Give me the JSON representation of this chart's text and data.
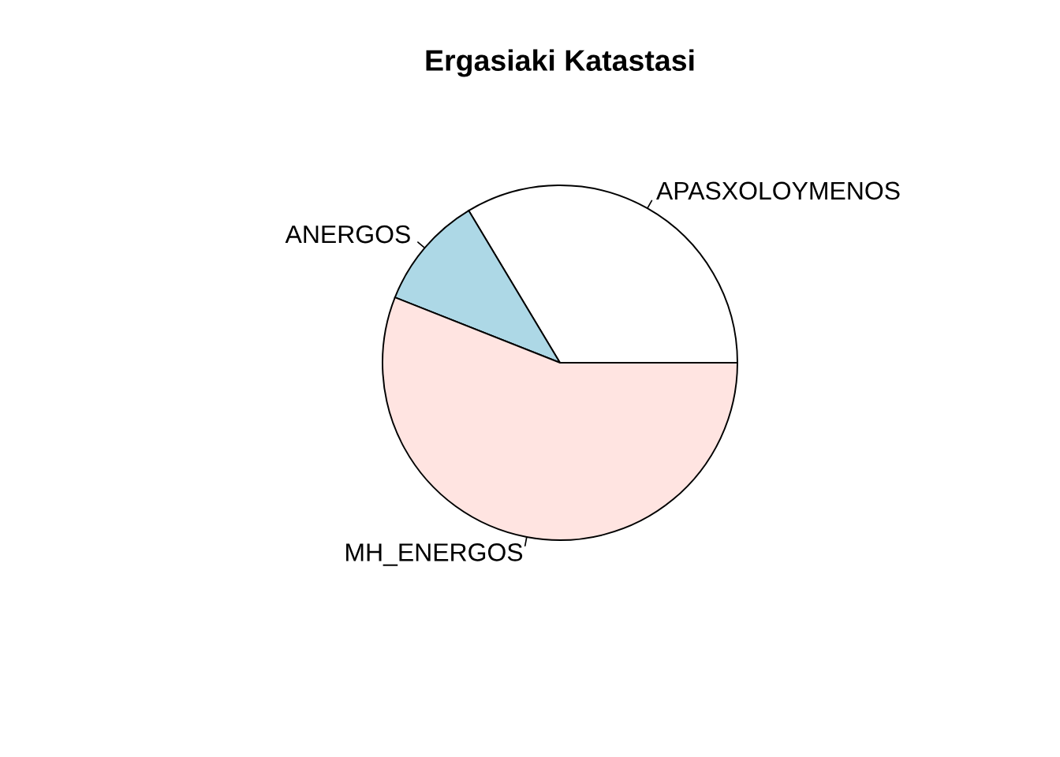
{
  "chart_data": {
    "type": "pie",
    "title": "Ergasiaki Katastasi",
    "categories": [
      "APASXOLOYMENOS",
      "ANERGOS",
      "MH_ENERGOS"
    ],
    "values": [
      33.6,
      10.4,
      56.0
    ],
    "colors": [
      "#ffffff",
      "#add8e6",
      "#ffe4e1"
    ]
  }
}
